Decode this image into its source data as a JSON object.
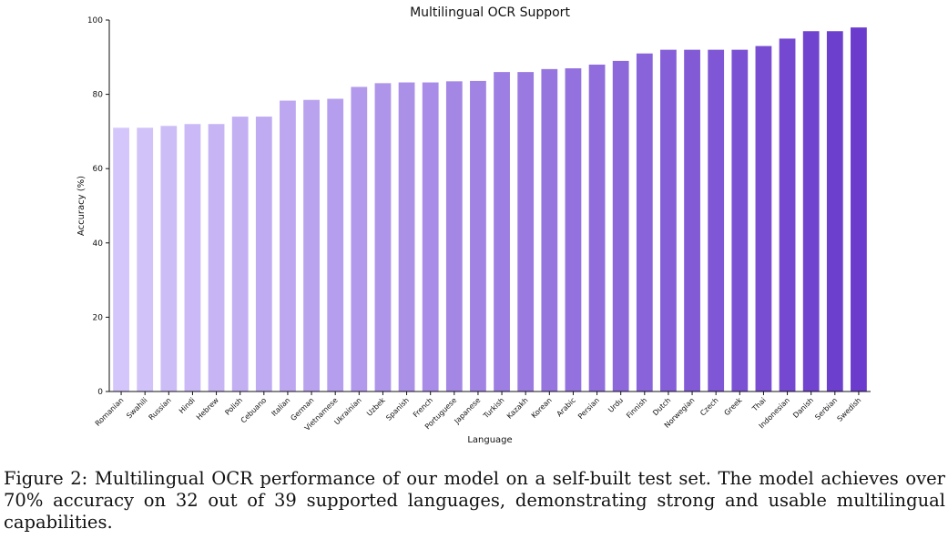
{
  "chart_data": {
    "type": "bar",
    "title": "Multilingual OCR Support",
    "xlabel": "Language",
    "ylabel": "Accuracy (%)",
    "ylim": [
      0,
      100
    ],
    "yticks": [
      0,
      20,
      40,
      60,
      80,
      100
    ],
    "grid": false,
    "legend": "none",
    "categories": [
      "Romanian",
      "Swahili",
      "Russian",
      "Hindi",
      "Hebrew",
      "Polish",
      "Cebuano",
      "Italian",
      "German",
      "Vietnamese",
      "Ukrainian",
      "Uzbek",
      "Spanish",
      "French",
      "Portuguese",
      "Japanese",
      "Turkish",
      "Kazakh",
      "Korean",
      "Arabic",
      "Persian",
      "Urdu",
      "Finnish",
      "Dutch",
      "Norwegian",
      "Czech",
      "Greek",
      "Thai",
      "Indonesian",
      "Danish",
      "Serbian",
      "Swedish"
    ],
    "values": [
      71,
      71,
      71.5,
      72,
      72,
      74,
      74,
      78.3,
      78.5,
      78.8,
      82,
      83,
      83.2,
      83.2,
      83.5,
      83.6,
      86,
      86,
      86.8,
      87,
      88,
      89,
      91,
      92,
      92,
      92,
      92,
      93,
      95,
      97,
      97,
      98
    ],
    "colors": {
      "start": "#d4c6fa",
      "end": "#6a3bcc",
      "axis": "#111111"
    }
  },
  "caption": {
    "text": "Figure 2: Multilingual OCR performance of our model on a self-built test set. The model achieves over 70% accuracy on 32 out of 39 supported languages, demonstrating strong and usable multilingual capabilities."
  }
}
